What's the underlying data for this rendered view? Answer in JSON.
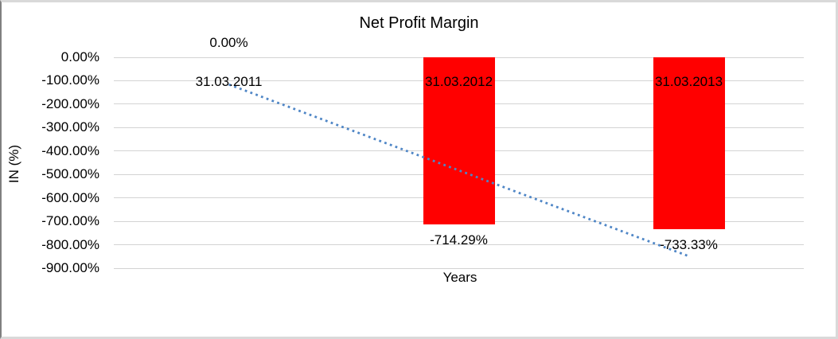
{
  "chart": {
    "title": "Net Profit Margin",
    "x_axis_title": "Years",
    "y_axis_title": "IN (%)"
  },
  "chart_data": {
    "type": "bar",
    "title": "Net Profit Margin",
    "xlabel": "Years",
    "ylabel": "IN (%)",
    "categories": [
      "31.03.2011",
      "31.03.2012",
      "31.03.2013"
    ],
    "values": [
      0,
      -714.29,
      -733.33
    ],
    "data_labels": [
      "0.00%",
      "-714.29%",
      "-733.33%"
    ],
    "ylim": [
      -900,
      0
    ],
    "y_tick_step": 100,
    "y_tick_labels": [
      "0.00%",
      "-100.00%",
      "-200.00%",
      "-300.00%",
      "-400.00%",
      "-500.00%",
      "-600.00%",
      "-700.00%",
      "-800.00%",
      "-900.00%"
    ],
    "grid": true,
    "legend": "none",
    "bar_color": "#FF0000",
    "gridline_color": "#D3D3D3",
    "trendline": {
      "type": "linear",
      "style": "dotted",
      "color": "#4F86C6",
      "start_value": -116,
      "end_value": -849
    }
  }
}
